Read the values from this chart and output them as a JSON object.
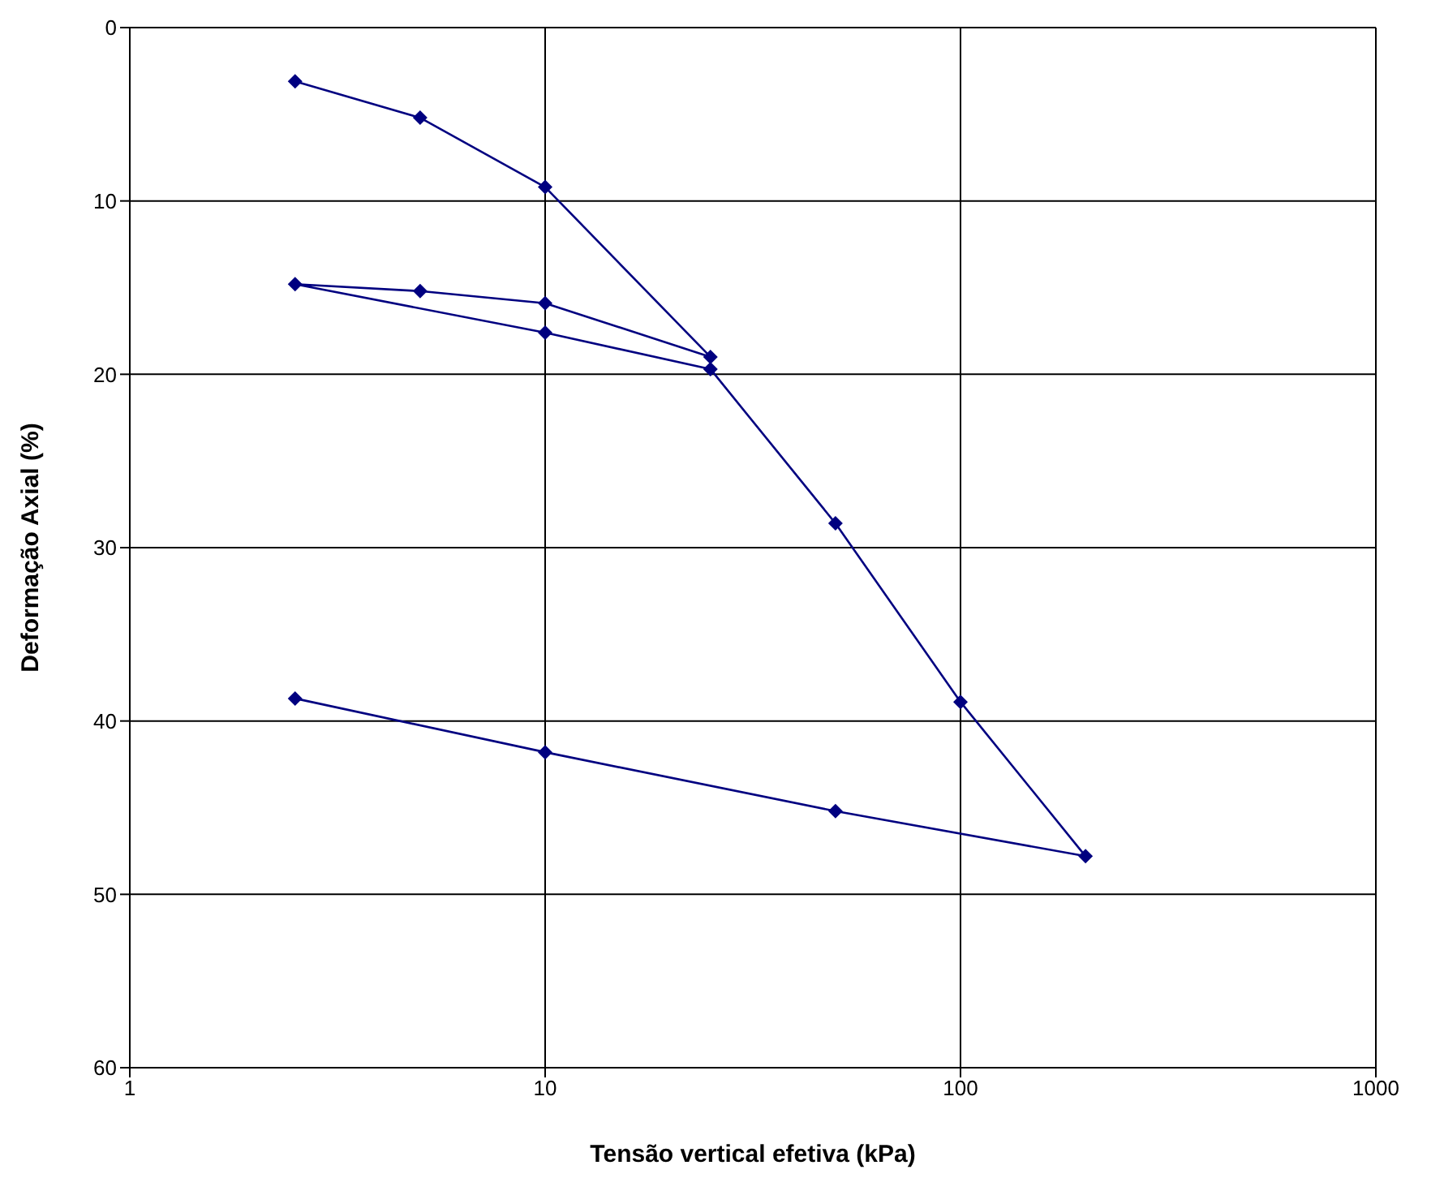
{
  "chart_data": {
    "type": "line",
    "xlabel": "Tensão vertical efetiva (kPa)",
    "ylabel": "Deformação Axial (%)",
    "x": [
      2.5,
      5,
      10,
      25,
      10,
      5,
      2.5,
      10,
      25,
      50,
      100,
      200,
      50,
      10,
      2.5
    ],
    "series": [
      {
        "color": "#000080",
        "values": [
          3.1,
          5.2,
          9.2,
          19.0,
          15.9,
          15.2,
          14.8,
          17.6,
          19.7,
          28.6,
          38.9,
          47.8,
          45.2,
          41.8,
          38.7
        ]
      }
    ],
    "log": "x",
    "xlim": [
      1,
      1000
    ],
    "xticks": [
      1,
      10,
      100,
      1000
    ],
    "ylim": [
      60,
      0
    ],
    "yticks": [
      0,
      10,
      20,
      30,
      40,
      50,
      60
    ],
    "grid": true,
    "legend": false,
    "marker": "diamond",
    "line_style": "solid"
  }
}
